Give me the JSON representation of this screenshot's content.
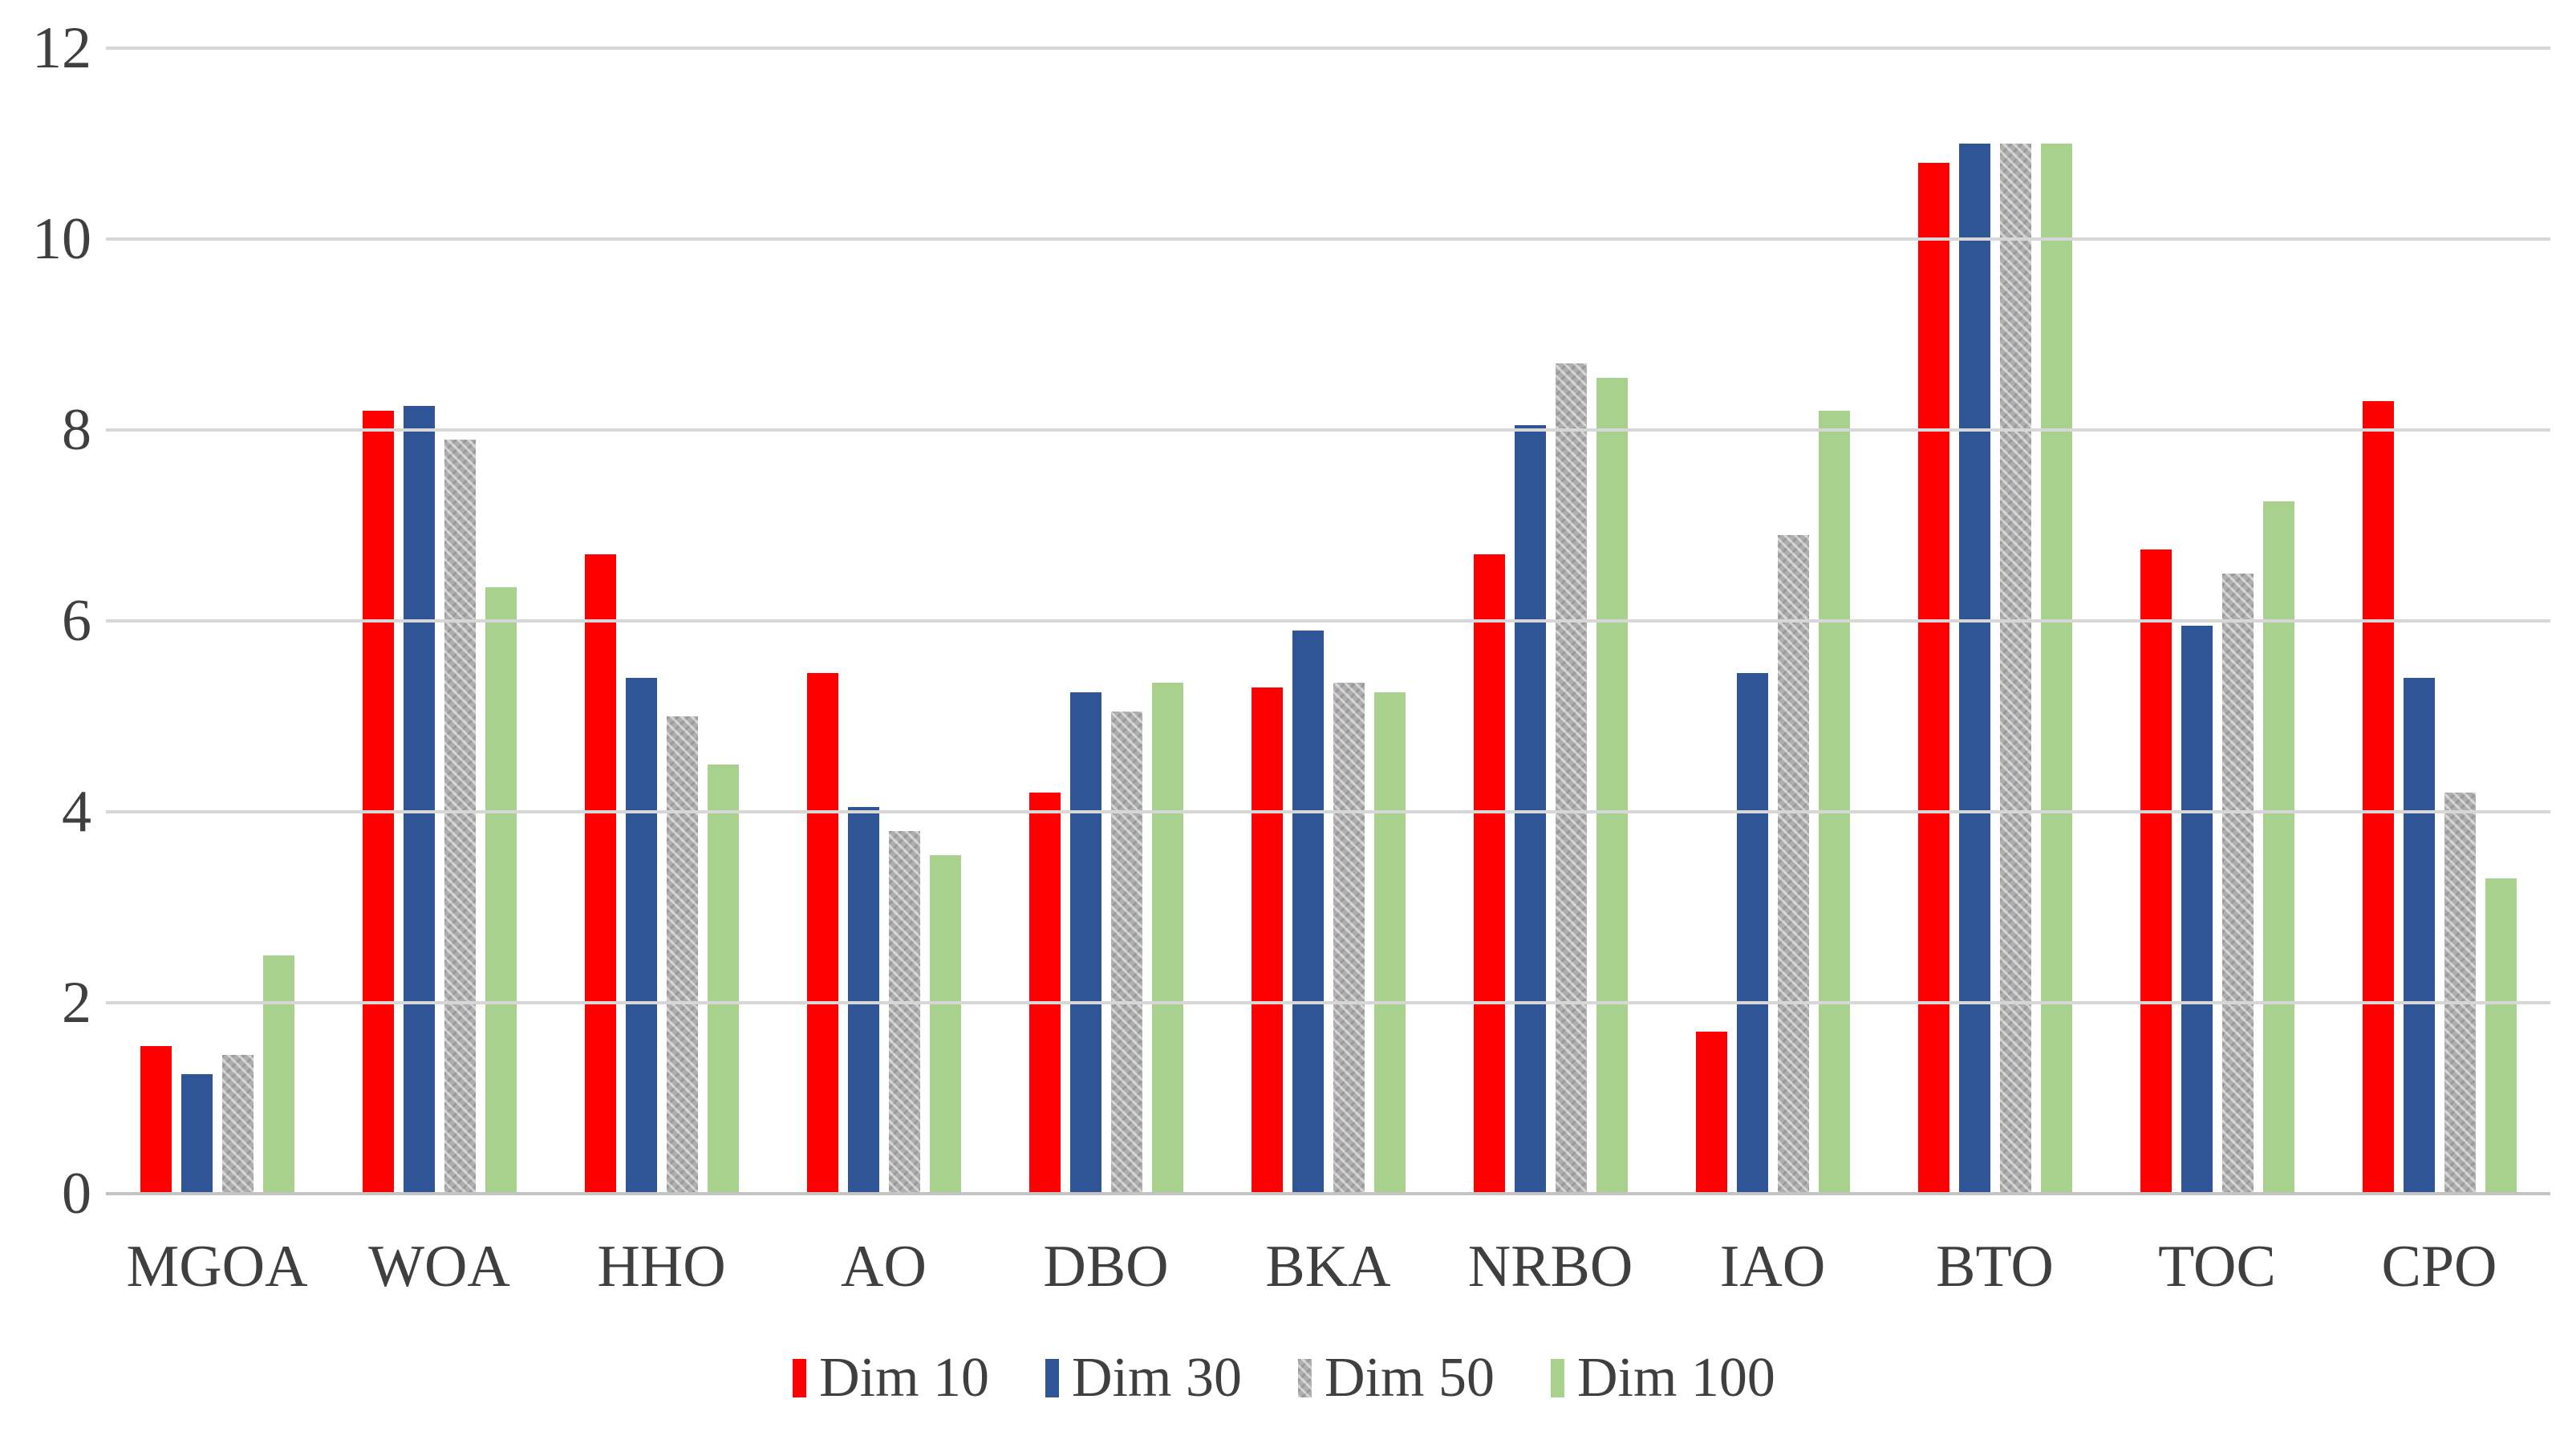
{
  "chart_data": {
    "type": "bar",
    "title": "",
    "xlabel": "",
    "ylabel": "",
    "categories": [
      "MGOA",
      "WOA",
      "HHO",
      "AO",
      "DBO",
      "BKA",
      "NRBO",
      "IAO",
      "BTO",
      "TOC",
      "CPO"
    ],
    "series": [
      {
        "name": "Dim 10",
        "color": "#fe0000",
        "pattern": "solid-red",
        "values": [
          1.55,
          8.2,
          6.7,
          5.45,
          4.2,
          5.3,
          6.7,
          1.7,
          10.8,
          6.75,
          8.3
        ]
      },
      {
        "name": "Dim 30",
        "color": "#2f5597",
        "pattern": "solid-blue",
        "values": [
          1.25,
          8.25,
          5.4,
          4.05,
          5.25,
          5.9,
          8.05,
          5.45,
          11.0,
          5.95,
          5.4
        ]
      },
      {
        "name": "Dim 50",
        "color": "#a6a6a6",
        "pattern": "crosshatch",
        "values": [
          1.45,
          7.9,
          5.0,
          3.8,
          5.05,
          5.35,
          8.7,
          6.9,
          11.0,
          6.5,
          4.2
        ]
      },
      {
        "name": "Dim 100",
        "color": "#a9d18e",
        "pattern": "solid-green",
        "values": [
          2.5,
          6.35,
          4.5,
          3.55,
          5.35,
          5.25,
          8.55,
          8.2,
          11.0,
          7.25,
          3.3
        ]
      }
    ],
    "ylim": [
      0,
      12
    ],
    "yticks": [
      0,
      2,
      4,
      6,
      8,
      10,
      12
    ],
    "grid": true,
    "legend_position": "bottom"
  },
  "colors": {
    "background": "#ffffff",
    "gridline": "#d7d7d7",
    "axis_line": "#c3c3c3",
    "text": "#3f3f3f"
  }
}
